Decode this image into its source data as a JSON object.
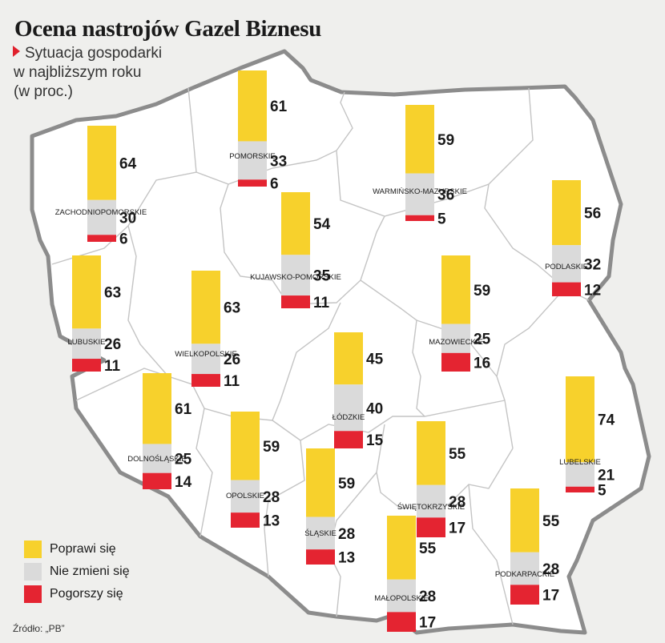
{
  "title": "Ocena nastrojów Gazel Biznesu",
  "subtitle_lines": [
    "Sytuacja gospodarki",
    "w najbliższym roku",
    "(w proc.)"
  ],
  "source": "Źródło: „PB”",
  "colors": {
    "improve": "#f7d12c",
    "same": "#dadada",
    "worse": "#e42431",
    "land": "#ffffff",
    "border": "#8c8c8c"
  },
  "legend": [
    {
      "label": "Poprawi się",
      "color": "#f7d12c"
    },
    {
      "label": "Nie zmieni się",
      "color": "#dadada"
    },
    {
      "label": "Pogorszy się",
      "color": "#e42431"
    }
  ],
  "chart_data": {
    "type": "bar",
    "stacked": true,
    "unit": "%",
    "series_order": [
      "Poprawi się",
      "Nie zmieni się",
      "Pogorszy się"
    ],
    "regions": [
      {
        "name": "ZACHODNIOPOMORSKIE",
        "values": [
          64,
          30,
          6
        ]
      },
      {
        "name": "POMORSKIE",
        "values": [
          61,
          33,
          6
        ]
      },
      {
        "name": "WARMIŃSKO-MAZURSKIE",
        "values": [
          59,
          36,
          5
        ]
      },
      {
        "name": "PODLASKIE",
        "values": [
          56,
          32,
          12
        ]
      },
      {
        "name": "KUJAWSKO-POMORSKIE",
        "values": [
          54,
          35,
          11
        ]
      },
      {
        "name": "LUBUSKIE",
        "values": [
          63,
          26,
          11
        ]
      },
      {
        "name": "WIELKOPOLSKIE",
        "values": [
          63,
          26,
          11
        ]
      },
      {
        "name": "MAZOWIECKIE",
        "values": [
          59,
          25,
          16
        ]
      },
      {
        "name": "ŁÓDZKIE",
        "values": [
          45,
          40,
          15
        ]
      },
      {
        "name": "DOLNOŚLĄSKIE",
        "values": [
          61,
          25,
          14
        ]
      },
      {
        "name": "OPOLSKIE",
        "values": [
          59,
          28,
          13
        ]
      },
      {
        "name": "ŚLĄSKIE",
        "values": [
          59,
          28,
          13
        ]
      },
      {
        "name": "ŚWIĘTOKRZYSKIE",
        "values": [
          55,
          28,
          17
        ]
      },
      {
        "name": "LUBELSKIE",
        "values": [
          74,
          21,
          5
        ]
      },
      {
        "name": "MAŁOPOLSKIE",
        "values": [
          55,
          28,
          17
        ]
      },
      {
        "name": "PODKARPACKIE",
        "values": [
          55,
          28,
          17
        ]
      }
    ]
  }
}
